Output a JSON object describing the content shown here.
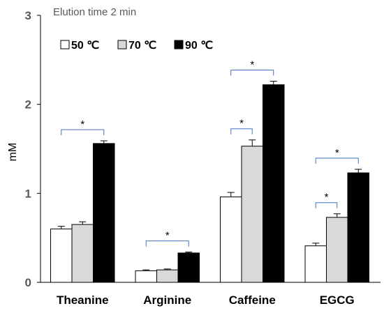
{
  "chart_data": {
    "type": "bar",
    "title": "Elution  time 2 min",
    "ylabel": "mM",
    "xlabel": "",
    "ylim": [
      0,
      3
    ],
    "yticks": [
      "0",
      "1",
      "2",
      "3"
    ],
    "categories": [
      "Theanine",
      "Arginine",
      "Caffeine",
      "EGCG"
    ],
    "series": [
      {
        "name": "50 ℃",
        "color": "#ffffff",
        "values": [
          0.6,
          0.13,
          0.96,
          0.41
        ],
        "errors": [
          0.03,
          0.01,
          0.05,
          0.03
        ]
      },
      {
        "name": "70 ℃",
        "color": "#d9d9d9",
        "values": [
          0.65,
          0.14,
          1.53,
          0.73
        ],
        "errors": [
          0.03,
          0.01,
          0.07,
          0.04
        ]
      },
      {
        "name": "90 ℃",
        "color": "#000000",
        "values": [
          1.56,
          0.33,
          2.22,
          1.23
        ],
        "errors": [
          0.03,
          0.01,
          0.04,
          0.04
        ]
      }
    ],
    "significance": [
      {
        "category": 0,
        "from": 0,
        "to": 2,
        "label": "*"
      },
      {
        "category": 1,
        "from": 0,
        "to": 2,
        "label": "*"
      },
      {
        "category": 2,
        "from": 0,
        "to": 1,
        "label": "*"
      },
      {
        "category": 2,
        "from": 0,
        "to": 2,
        "label": "*"
      },
      {
        "category": 3,
        "from": 0,
        "to": 1,
        "label": "*"
      },
      {
        "category": 3,
        "from": 0,
        "to": 2,
        "label": "*"
      }
    ],
    "legend_position": "top-left",
    "grid": false,
    "bracket_color": "#4472c4"
  }
}
